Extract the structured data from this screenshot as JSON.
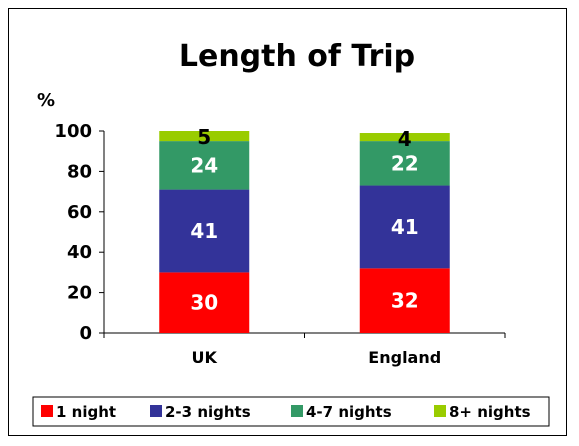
{
  "chart_data": {
    "type": "bar",
    "stacked": true,
    "title": "Length of Trip",
    "ylabel": "%",
    "xlabel": "",
    "categories": [
      "UK",
      "England"
    ],
    "ylim": [
      0,
      100
    ],
    "yticks": [
      0,
      20,
      40,
      60,
      80,
      100
    ],
    "grid": false,
    "legend_position": "bottom",
    "series": [
      {
        "name": "1 night",
        "values": [
          30,
          32
        ],
        "color": "#ff0000",
        "label_color": "#ffffff"
      },
      {
        "name": "2-3 nights",
        "values": [
          41,
          41
        ],
        "color": "#333399",
        "label_color": "#ffffff"
      },
      {
        "name": "4-7 nights",
        "values": [
          24,
          22
        ],
        "color": "#339966",
        "label_color": "#ffffff"
      },
      {
        "name": "8+ nights",
        "values": [
          5,
          4
        ],
        "color": "#99cc00",
        "label_color": "#000000"
      }
    ]
  }
}
